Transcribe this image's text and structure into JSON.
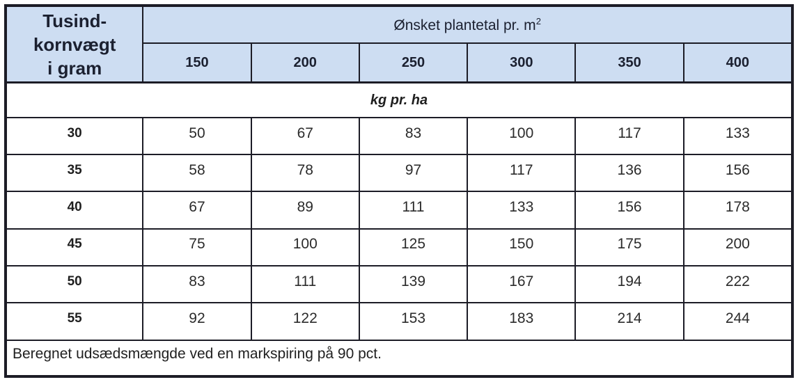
{
  "chart_data": {
    "type": "table",
    "row_header": "Tusindkornvægt i gram",
    "column_group_header": "Ønsket plantetal pr. m²",
    "columns": [
      "150",
      "200",
      "250",
      "300",
      "350",
      "400"
    ],
    "unit": "kg pr. ha",
    "rows": [
      {
        "label": "30",
        "values": [
          50,
          67,
          83,
          100,
          117,
          133
        ]
      },
      {
        "label": "35",
        "values": [
          58,
          78,
          97,
          117,
          136,
          156
        ]
      },
      {
        "label": "40",
        "values": [
          67,
          89,
          111,
          133,
          156,
          178
        ]
      },
      {
        "label": "45",
        "values": [
          75,
          100,
          125,
          150,
          175,
          200
        ]
      },
      {
        "label": "50",
        "values": [
          83,
          111,
          139,
          167,
          194,
          222
        ]
      },
      {
        "label": "55",
        "values": [
          92,
          122,
          153,
          183,
          214,
          244
        ]
      }
    ],
    "footnote": "Beregnet udsædsmængde ved en markspiring på 90 pct."
  },
  "table": {
    "corner_lines": [
      "Tusind-",
      "kornvægt",
      "i gram"
    ],
    "group_header_base": "Ønsket plantetal pr. m",
    "group_header_sup": "2",
    "unit_label": "kg pr. ha",
    "footnote": "Beregnet udsædsmængde ved en markspiring på 90 pct."
  },
  "colors": {
    "header_bg": "#cdddf2",
    "border": "#1c1c26",
    "header_text": "#1b2030",
    "body_text": "#2b2b2b"
  }
}
